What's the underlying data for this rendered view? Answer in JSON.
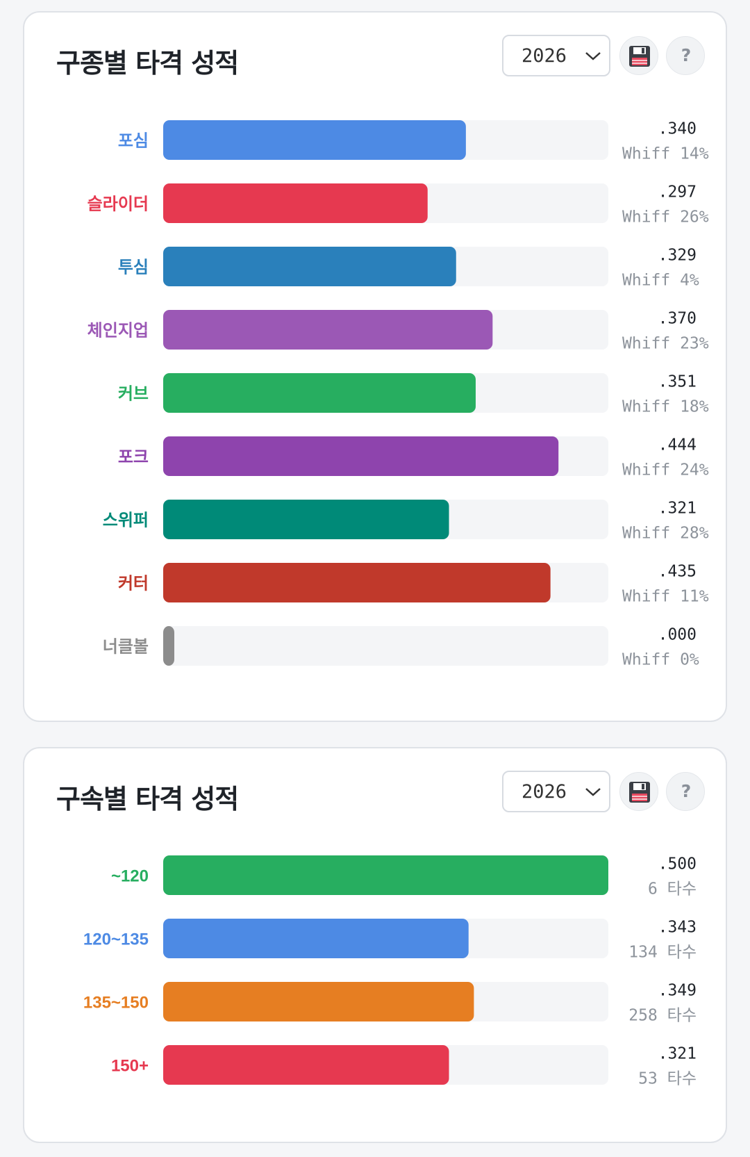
{
  "pitch_type_card": {
    "title": "구종별 타격 성적",
    "year": "2026",
    "icons": {
      "save": "floppy-disk-icon",
      "help": "?"
    }
  },
  "velocity_card": {
    "title": "구속별 타격 성적",
    "year": "2026",
    "icons": {
      "save": "floppy-disk-icon",
      "help": "?"
    }
  },
  "chart_data": [
    {
      "type": "bar",
      "orientation": "horizontal",
      "title": "구종별 타격 성적",
      "categories": [
        "포심",
        "슬라이더",
        "투심",
        "체인지업",
        "커브",
        "포크",
        "스위퍼",
        "커터",
        "너클볼"
      ],
      "values": [
        0.34,
        0.297,
        0.329,
        0.37,
        0.351,
        0.444,
        0.321,
        0.435,
        0.0
      ],
      "value_labels": [
        ".340",
        ".297",
        ".329",
        ".370",
        ".351",
        ".444",
        ".321",
        ".435",
        ".000"
      ],
      "sub_labels": [
        "Whiff 14%",
        "Whiff 26%",
        "Whiff 4%",
        "Whiff 23%",
        "Whiff 18%",
        "Whiff 24%",
        "Whiff 28%",
        "Whiff 11%",
        "Whiff 0%"
      ],
      "colors": [
        "#4d8ae4",
        "#e63950",
        "#2a80bb",
        "#9b58b5",
        "#27ae60",
        "#8e44ad",
        "#008a78",
        "#c0392b",
        "#8c8c8c"
      ],
      "xlim": [
        0,
        0.5
      ],
      "grid": false,
      "legend": "none"
    },
    {
      "type": "bar",
      "orientation": "horizontal",
      "title": "구속별 타격 성적",
      "categories": [
        "~120",
        "120~135",
        "135~150",
        "150+"
      ],
      "values": [
        0.5,
        0.343,
        0.349,
        0.321
      ],
      "value_labels": [
        ".500",
        ".343",
        ".349",
        ".321"
      ],
      "sub_labels": [
        "6 타수",
        "134 타수",
        "258 타수",
        "53 타수"
      ],
      "colors": [
        "#27ae60",
        "#4d8ae4",
        "#e67e22",
        "#e63950"
      ],
      "xlim": [
        0,
        0.5
      ],
      "grid": false,
      "legend": "none"
    }
  ]
}
